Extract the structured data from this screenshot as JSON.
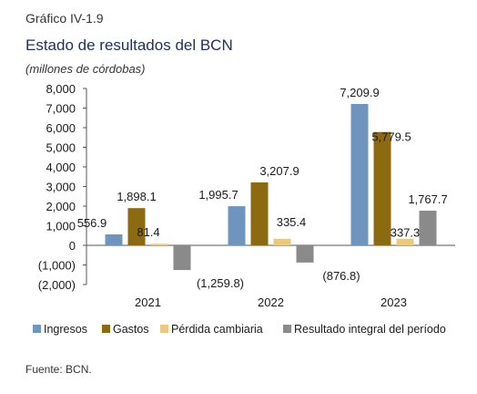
{
  "figure": {
    "number": "Gráfico IV-1.9",
    "title": "Estado de resultados del BCN",
    "subtitle": "(millones de córdobas)",
    "source": "Fuente: BCN."
  },
  "chart_data": {
    "type": "bar",
    "categories": [
      "2021",
      "2022",
      "2023"
    ],
    "series": [
      {
        "name": "Ingresos",
        "values": [
          556.9,
          1995.7,
          7209.9
        ],
        "labels": [
          "556.9",
          "1,995.7",
          "7,209.9"
        ],
        "color": "#6f94bd"
      },
      {
        "name": "Gastos",
        "values": [
          1898.1,
          3207.9,
          5779.5
        ],
        "labels": [
          "1,898.1",
          "3,207.9",
          "5,779.5"
        ],
        "color": "#8c6a10"
      },
      {
        "name": "Pérdida cambiaria",
        "values": [
          81.4,
          335.4,
          337.3
        ],
        "labels": [
          "81.4",
          "335.4",
          "337.3"
        ],
        "color": "#ebc97e"
      },
      {
        "name": "Resultado integral del período",
        "values": [
          -1259.8,
          -876.8,
          1767.7
        ],
        "labels": [
          "(1,259.8)",
          "(876.8)",
          "1,767.7"
        ],
        "color": "#8a8a8a"
      }
    ],
    "ylim": [
      -2000,
      8000
    ],
    "yticks": [
      8000,
      7000,
      6000,
      5000,
      4000,
      3000,
      2000,
      1000,
      0,
      -1000,
      -2000
    ],
    "ytick_labels": [
      "8,000",
      "7,000",
      "6,000",
      "5,000",
      "4,000",
      "3,000",
      "2,000",
      "1,000",
      "0",
      "(1,000)",
      "(2,000)"
    ],
    "legend_position": "bottom",
    "grid": false
  }
}
